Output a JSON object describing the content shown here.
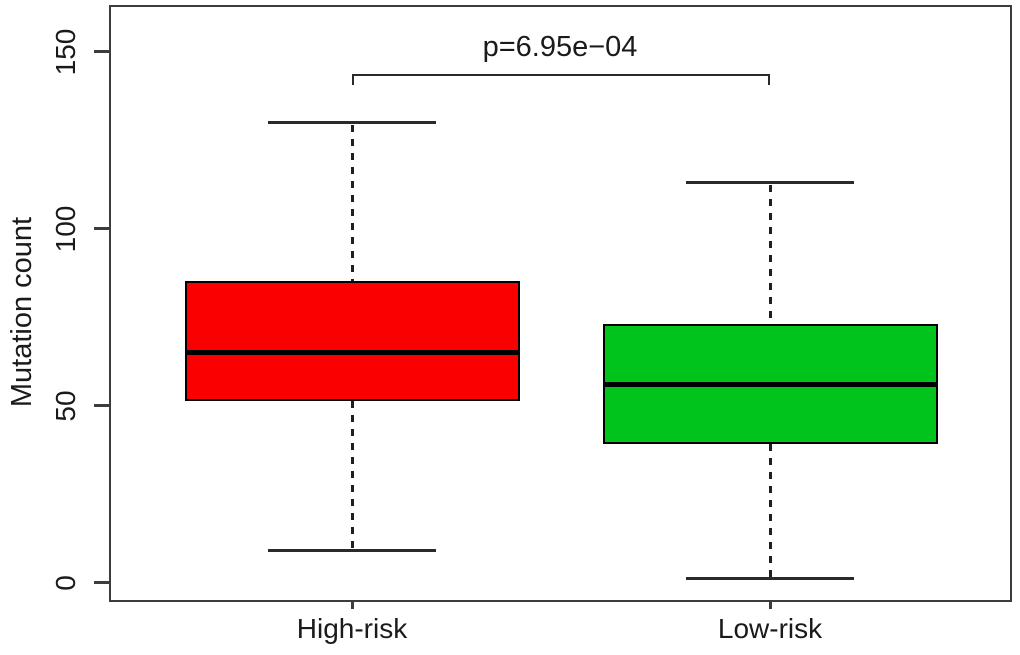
{
  "figure": {
    "background": "#ffffff",
    "axis_color": "#3c3c3c",
    "text_color": "#1a1a1a"
  },
  "chart_data": {
    "type": "box",
    "title": "",
    "xlabel": "",
    "ylabel": "Mutation count",
    "categories": [
      "High-risk",
      "Low-risk"
    ],
    "y_ticks": [
      0,
      50,
      100,
      150
    ],
    "y_tick_labels": [
      "0",
      "50",
      "100",
      "150"
    ],
    "ylim": [
      -6,
      162
    ],
    "grid": false,
    "legend": "none",
    "series": [
      {
        "name": "High-risk",
        "color": "#fb0000",
        "lower_whisker": 9,
        "q1": 51,
        "median": 65,
        "q3": 85,
        "upper_whisker": 130
      },
      {
        "name": "Low-risk",
        "color": "#00c41c",
        "lower_whisker": 1,
        "q1": 39,
        "median": 56,
        "q3": 73,
        "upper_whisker": 113
      }
    ],
    "annotation": {
      "text": "p=6.95e−04",
      "compares": [
        "High-risk",
        "Low-risk"
      ]
    }
  }
}
